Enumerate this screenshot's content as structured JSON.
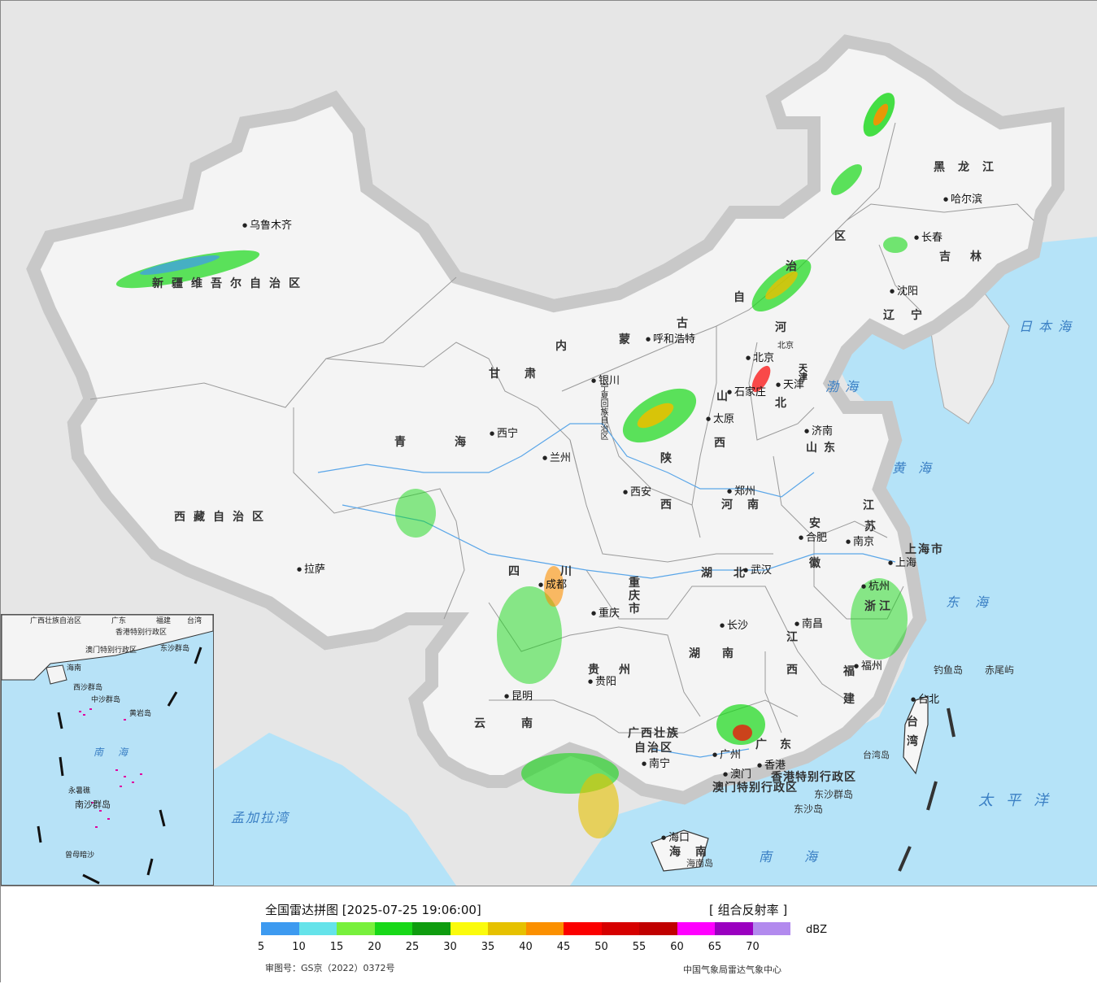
{
  "provinces": {
    "xinjiang": "新疆维吾尔自治区",
    "xizang": "西藏自治区",
    "qinghai": "青海",
    "gansu": "甘肃",
    "neimenggu": [
      "内",
      "蒙",
      "古",
      "自",
      "治",
      "区"
    ],
    "heilongjiang": "黑龙江",
    "jilin": "吉林",
    "liaoning": "辽宁",
    "hebei": [
      "河",
      "北"
    ],
    "shanxi": [
      "山",
      "西"
    ],
    "shandong": "山东",
    "shaanxi": [
      "陕",
      "西"
    ],
    "henan": "河南",
    "ningxia": "宁夏回族自治区",
    "sichuan": "四川",
    "chongqing": "重庆市",
    "hubei": "湖北",
    "anhui": [
      "安",
      "徽"
    ],
    "jiangsu": [
      "江",
      "苏"
    ],
    "shanghai": "上海市",
    "zhejiang": "浙江",
    "jiangxi": [
      "江",
      "西"
    ],
    "hunan": [
      "湖",
      "南"
    ],
    "guizhou": "贵州",
    "yunnan": "云南",
    "guangxi": "广西壮族自治区",
    "guangdong": "广东",
    "fujian": [
      "福",
      "建"
    ],
    "taiwan": [
      "台",
      "湾"
    ],
    "hainan": "海南",
    "hongkong": "香港特别行政区",
    "macau": "澳门特别行政区",
    "tianjin": "天津",
    "beijing": "北京"
  },
  "cities": {
    "urumqi": "乌鲁木齐",
    "lhasa": "拉萨",
    "xining": "西宁",
    "lanzhou": "兰州",
    "yinchuan": "银川",
    "hohhot": "呼和浩特",
    "harbin": "哈尔滨",
    "changchun": "长春",
    "shenyang": "沈阳",
    "beijing": "北京",
    "tianjin": "天津",
    "shijiazhuang": "石家庄",
    "taiyuan": "太原",
    "jinan": "济南",
    "xian": "西安",
    "zhengzhou": "郑州",
    "hefei": "合肥",
    "nanjing": "南京",
    "shanghai": "上海",
    "hangzhou": "杭州",
    "wuhan": "武汉",
    "chengdu": "成都",
    "chongqing": "重庆",
    "changsha": "长沙",
    "nanchang": "南昌",
    "fuzhou": "福州",
    "taipei": "台北",
    "guiyang": "贵阳",
    "kunming": "昆明",
    "nanning": "南宁",
    "guangzhou": "广州",
    "macau": "澳门",
    "hongkong": "香港",
    "haikou": "海口"
  },
  "seas": {
    "japan_sea": "日本海",
    "bohai": "渤海",
    "yellow_sea": "黄海",
    "east_sea": "东海",
    "pacific": "太平洋",
    "south_sea": "南海",
    "bengal": "孟加拉湾"
  },
  "islands": {
    "diaoyu": "钓鱼岛",
    "chiwei": "赤尾屿",
    "dongsha": "东沙群岛",
    "dongsha_dao": "东沙岛",
    "hainan_dao": "海南岛",
    "taiwan_dao": "台湾岛"
  },
  "minimap": {
    "guangxi": "广西壮族自治区",
    "guangdong": "广东",
    "fujian": "福建",
    "taiwan": "台湾",
    "hongkong": "香港特别行政区",
    "macau": "澳门特别行政区",
    "dongsha": "东沙群岛",
    "hainan": "海南",
    "xisha": "西沙群岛",
    "zhongsha": "中沙群岛",
    "huangyan": "黄岩岛",
    "south_sea": "南海",
    "nansha": "南沙群岛",
    "yongshu": "永暑礁",
    "zengmu": "曾母暗沙"
  },
  "legend": {
    "title": "全国雷达拼图 [2025-07-25 19:06:00]",
    "product": "[ 组合反射率 ]",
    "unit": "dBZ",
    "ticks": [
      "5",
      "10",
      "15",
      "20",
      "25",
      "30",
      "35",
      "40",
      "45",
      "50",
      "55",
      "60",
      "65",
      "70"
    ],
    "colors": [
      "#3d9af0",
      "#65e3ea",
      "#78f03c",
      "#18d818",
      "#0f9c0f",
      "#fbfb0c",
      "#e6c100",
      "#fb9000",
      "#fb0000",
      "#d60000",
      "#c00000",
      "#ff00ff",
      "#9a00c0",
      "#b28aee"
    ],
    "review_number": "审图号：GS京（2022）0372号",
    "organization": "中国气象局雷达气象中心"
  }
}
